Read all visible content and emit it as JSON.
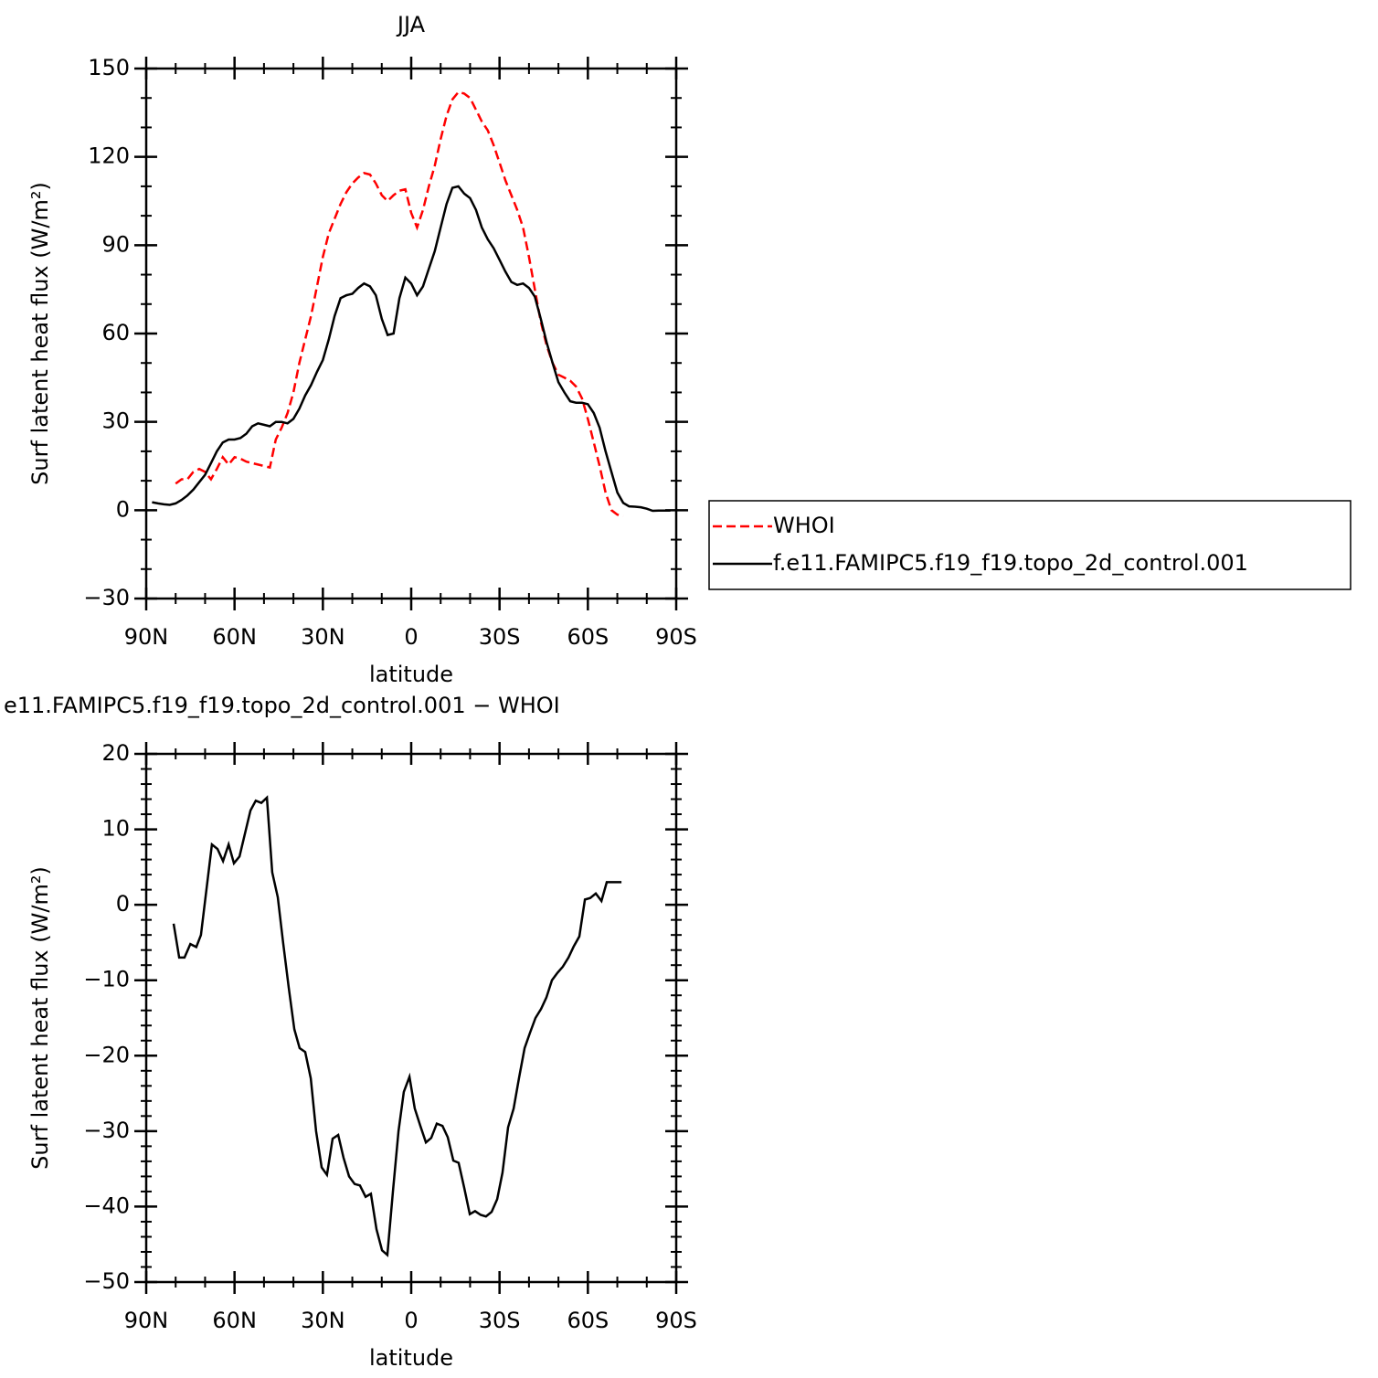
{
  "chart_data": [
    {
      "type": "line",
      "title": "JJA",
      "xlabel": "latitude",
      "ylabel": "Surf latent heat flux (W/m²)",
      "x": [
        88,
        86,
        84,
        82,
        80,
        78,
        76,
        74,
        72,
        70,
        68,
        66,
        64,
        62,
        60,
        58,
        56,
        54,
        52,
        50,
        48,
        46,
        44,
        42,
        40,
        38,
        36,
        34,
        32,
        30,
        28,
        26,
        24,
        22,
        20,
        18,
        16,
        14,
        12,
        10,
        8,
        6,
        4,
        2,
        0,
        -2,
        -4,
        -6,
        -8,
        -10,
        -12,
        -14,
        -16,
        -18,
        -20,
        -22,
        -24,
        -26,
        -28,
        -30,
        -32,
        -34,
        -36,
        -38,
        -40,
        -42,
        -44,
        -46,
        -48,
        -50,
        -52,
        -54,
        -56,
        -58,
        -60,
        -62,
        -64,
        -66,
        -68,
        -70,
        -72,
        -74,
        -76,
        -78,
        -80,
        -82,
        -84,
        -86,
        -88
      ],
      "series": [
        {
          "name": "WHOI",
          "color": "#ff0000",
          "line_style": "dashed",
          "values": [
            null,
            null,
            null,
            null,
            9,
            10.5,
            10.5,
            13,
            14,
            13,
            10.5,
            14,
            18,
            15.5,
            18,
            17.5,
            16.5,
            16,
            15.5,
            15,
            14.5,
            24,
            28,
            33,
            40,
            50,
            58,
            66,
            76,
            86,
            94,
            99,
            104,
            108,
            111,
            113,
            114.5,
            114,
            111,
            107,
            105,
            107,
            108.5,
            109,
            101,
            96,
            102,
            110,
            117,
            126,
            134,
            139.5,
            142,
            141.5,
            140,
            136,
            132,
            129,
            124,
            118,
            112,
            107,
            102,
            96,
            86,
            75,
            64,
            56,
            50,
            46,
            45,
            44,
            42,
            38,
            31,
            23,
            15,
            6,
            0,
            -1.5,
            -2,
            null,
            null,
            null,
            null,
            null,
            null,
            null,
            null
          ]
        },
        {
          "name": "f.e11.FAMIPC5.f19_f19.topo_2d_control.001",
          "color": "#000000",
          "line_style": "solid",
          "values": [
            2.7,
            2.3,
            2,
            1.8,
            2.3,
            3.5,
            5,
            7,
            9.5,
            12,
            16,
            20,
            23,
            24,
            24,
            24.5,
            26,
            28.5,
            29.5,
            29,
            28.5,
            30,
            30,
            29.5,
            31,
            34.5,
            39,
            42.5,
            47,
            51,
            58,
            66,
            72,
            73,
            73.5,
            75.5,
            77,
            76,
            73,
            65,
            59.5,
            60,
            72,
            79,
            77,
            73,
            76,
            82,
            88,
            96,
            104,
            109.5,
            110,
            107.5,
            106,
            102,
            96,
            92,
            89,
            85,
            81,
            77.5,
            76.5,
            77,
            75.5,
            72.5,
            65,
            57,
            50,
            43.5,
            40,
            37,
            36.5,
            36.5,
            36,
            33,
            28,
            20,
            13,
            6,
            2.5,
            1.3,
            1.2,
            1,
            0.5,
            -0.2,
            -0.1,
            -0.1,
            -0.1
          ]
        }
      ],
      "xlim": [
        90,
        -90
      ],
      "xticks": [
        {
          "value": 90,
          "label": "90N"
        },
        {
          "value": 60,
          "label": "60N"
        },
        {
          "value": 30,
          "label": "30N"
        },
        0,
        {
          "value": -30,
          "label": "30S"
        },
        {
          "value": -60,
          "label": "60S"
        },
        {
          "value": -90,
          "label": "90S"
        }
      ],
      "ylim": [
        -30,
        150
      ],
      "yticks": [
        {
          "value": -30,
          "label": "−30"
        },
        0,
        30,
        60,
        90,
        120,
        150
      ],
      "legend": "right"
    },
    {
      "type": "line",
      "title": "e11.FAMIPC5.f19_f19.topo_2d_control.001 − WHOI",
      "xlabel": "latitude",
      "ylabel": "Surf latent heat flux (W/m²)",
      "x": [
        80.7,
        78.8,
        77,
        75,
        73,
        71.4,
        67.7,
        65.8,
        63.9,
        62,
        60.2,
        58.3,
        54.6,
        52.8,
        50.9,
        49,
        47.2,
        45.3,
        43.5,
        41.6,
        39.7,
        37.9,
        36,
        34.1,
        32.3,
        30.4,
        28.6,
        26.7,
        24.8,
        23,
        21.1,
        19.2,
        17.4,
        15.5,
        13.7,
        11.8,
        9.9,
        8.1,
        6.2,
        4.3,
        2.5,
        0.6,
        -1.2,
        -3.1,
        -5,
        -6.8,
        -8.7,
        -10.6,
        -12.4,
        -14.3,
        -16.1,
        -18,
        -19.9,
        -21.7,
        -23.6,
        -25.4,
        -27.3,
        -29.2,
        -31,
        -32.9,
        -34.8,
        -36.6,
        -38.5,
        -40.3,
        -42.2,
        -44.1,
        -45.9,
        -47.8,
        -49.7,
        -51.5,
        -53.4,
        -55.2,
        -57.1,
        -59,
        -60.8,
        -62.7,
        -64.6,
        -66.4,
        -68.3,
        -71.4
      ],
      "series": [
        {
          "color": "#000000",
          "line_style": "solid",
          "values": [
            -2.5,
            -7,
            -7,
            -5.2,
            -5.6,
            -4,
            8,
            7.4,
            5.8,
            8,
            5.5,
            6.4,
            12.5,
            13.8,
            13.5,
            14.2,
            4.3,
            1,
            -5,
            -11,
            -16.5,
            -19,
            -19.5,
            -23,
            -30,
            -34.8,
            -35.8,
            -31,
            -30.5,
            -33.5,
            -36,
            -37,
            -37.2,
            -38.7,
            -38.3,
            -43,
            -45.8,
            -46.4,
            -38,
            -30,
            -24.8,
            -22.8,
            -27,
            -29.3,
            -31.5,
            -30.9,
            -29,
            -29.3,
            -30.8,
            -33.9,
            -34.2,
            -37.5,
            -41,
            -40.6,
            -41.1,
            -41.3,
            -40.7,
            -39,
            -35.5,
            -29.5,
            -27,
            -23,
            -19,
            -17,
            -15,
            -13.8,
            -12.3,
            -10,
            -9,
            -8.2,
            -7,
            -5.5,
            -4.2,
            0.7,
            0.9,
            1.5,
            0.5,
            3,
            3,
            3
          ]
        }
      ],
      "xlim": [
        90,
        -90
      ],
      "xticks": [
        {
          "value": 90,
          "label": "90N"
        },
        {
          "value": 60,
          "label": "60N"
        },
        {
          "value": 30,
          "label": "30N"
        },
        0,
        {
          "value": -30,
          "label": "30S"
        },
        {
          "value": -60,
          "label": "60S"
        },
        {
          "value": -90,
          "label": "90S"
        }
      ],
      "ylim": [
        -50,
        20
      ],
      "yticks": [
        {
          "value": -50,
          "label": "−50"
        },
        {
          "value": -40,
          "label": "−40"
        },
        {
          "value": -30,
          "label": "−30"
        },
        {
          "value": -20,
          "label": "−20"
        },
        {
          "value": -10,
          "label": "−10"
        },
        0,
        10,
        20
      ]
    }
  ]
}
